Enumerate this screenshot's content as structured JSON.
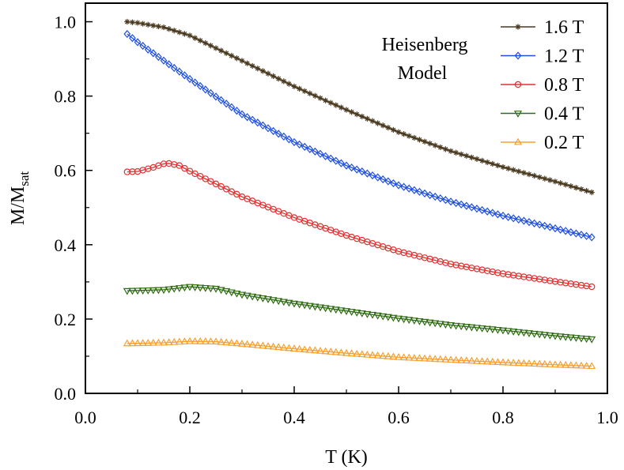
{
  "chart_data": {
    "type": "line",
    "xlabel": "T (K)",
    "ylabel": {
      "main": "M/M",
      "sub": "sat"
    },
    "xlim": [
      0.0,
      1.0
    ],
    "ylim": [
      0.0,
      1.05
    ],
    "xticks": [
      0.0,
      0.2,
      0.4,
      0.6,
      0.8,
      1.0
    ],
    "yticks": [
      0.0,
      0.2,
      0.4,
      0.6,
      0.8,
      1.0
    ],
    "xtick_labels": [
      "0.0",
      "0.2",
      "0.4",
      "0.6",
      "0.8",
      "1.0"
    ],
    "ytick_labels": [
      "0.0",
      "0.2",
      "0.4",
      "0.6",
      "0.8",
      "1.0"
    ],
    "annotation": {
      "line1": "Heisenberg",
      "line2": "Model"
    },
    "legend_position": "top-right",
    "x_start": 0.08,
    "x_end": 0.97,
    "x_step": 0.01,
    "series": [
      {
        "name": "1.6 T",
        "color": "#4a3a20",
        "marker": "star",
        "knots": [
          [
            0.08,
            1.0
          ],
          [
            0.1,
            0.997
          ],
          [
            0.15,
            0.985
          ],
          [
            0.2,
            0.963
          ],
          [
            0.3,
            0.895
          ],
          [
            0.4,
            0.826
          ],
          [
            0.5,
            0.763
          ],
          [
            0.6,
            0.703
          ],
          [
            0.7,
            0.652
          ],
          [
            0.8,
            0.609
          ],
          [
            0.9,
            0.57
          ],
          [
            0.97,
            0.541
          ]
        ]
      },
      {
        "name": "1.2 T",
        "color": "#1f4fe0",
        "marker": "diamond",
        "knots": [
          [
            0.08,
            0.967
          ],
          [
            0.1,
            0.945
          ],
          [
            0.2,
            0.846
          ],
          [
            0.3,
            0.751
          ],
          [
            0.4,
            0.676
          ],
          [
            0.5,
            0.613
          ],
          [
            0.6,
            0.56
          ],
          [
            0.7,
            0.516
          ],
          [
            0.8,
            0.478
          ],
          [
            0.9,
            0.444
          ],
          [
            0.97,
            0.42
          ]
        ]
      },
      {
        "name": "0.8 T",
        "color": "#e03030",
        "marker": "circle",
        "knots": [
          [
            0.08,
            0.596
          ],
          [
            0.1,
            0.597
          ],
          [
            0.13,
            0.608
          ],
          [
            0.155,
            0.62
          ],
          [
            0.18,
            0.613
          ],
          [
            0.2,
            0.598
          ],
          [
            0.3,
            0.529
          ],
          [
            0.4,
            0.473
          ],
          [
            0.5,
            0.425
          ],
          [
            0.6,
            0.382
          ],
          [
            0.7,
            0.348
          ],
          [
            0.8,
            0.322
          ],
          [
            0.9,
            0.301
          ],
          [
            0.97,
            0.287
          ]
        ]
      },
      {
        "name": "0.4 T",
        "color": "#2e6b12",
        "marker": "triangle-down",
        "knots": [
          [
            0.08,
            0.276
          ],
          [
            0.15,
            0.279
          ],
          [
            0.2,
            0.287
          ],
          [
            0.25,
            0.282
          ],
          [
            0.3,
            0.266
          ],
          [
            0.4,
            0.242
          ],
          [
            0.5,
            0.222
          ],
          [
            0.6,
            0.202
          ],
          [
            0.7,
            0.184
          ],
          [
            0.8,
            0.17
          ],
          [
            0.9,
            0.155
          ],
          [
            0.97,
            0.146
          ]
        ]
      },
      {
        "name": "0.2 T",
        "color": "#f5a030",
        "marker": "triangle-up",
        "knots": [
          [
            0.08,
            0.134
          ],
          [
            0.15,
            0.136
          ],
          [
            0.2,
            0.14
          ],
          [
            0.25,
            0.139
          ],
          [
            0.3,
            0.133
          ],
          [
            0.4,
            0.12
          ],
          [
            0.5,
            0.108
          ],
          [
            0.6,
            0.097
          ],
          [
            0.7,
            0.09
          ],
          [
            0.8,
            0.083
          ],
          [
            0.9,
            0.077
          ],
          [
            0.97,
            0.073
          ]
        ]
      }
    ]
  }
}
